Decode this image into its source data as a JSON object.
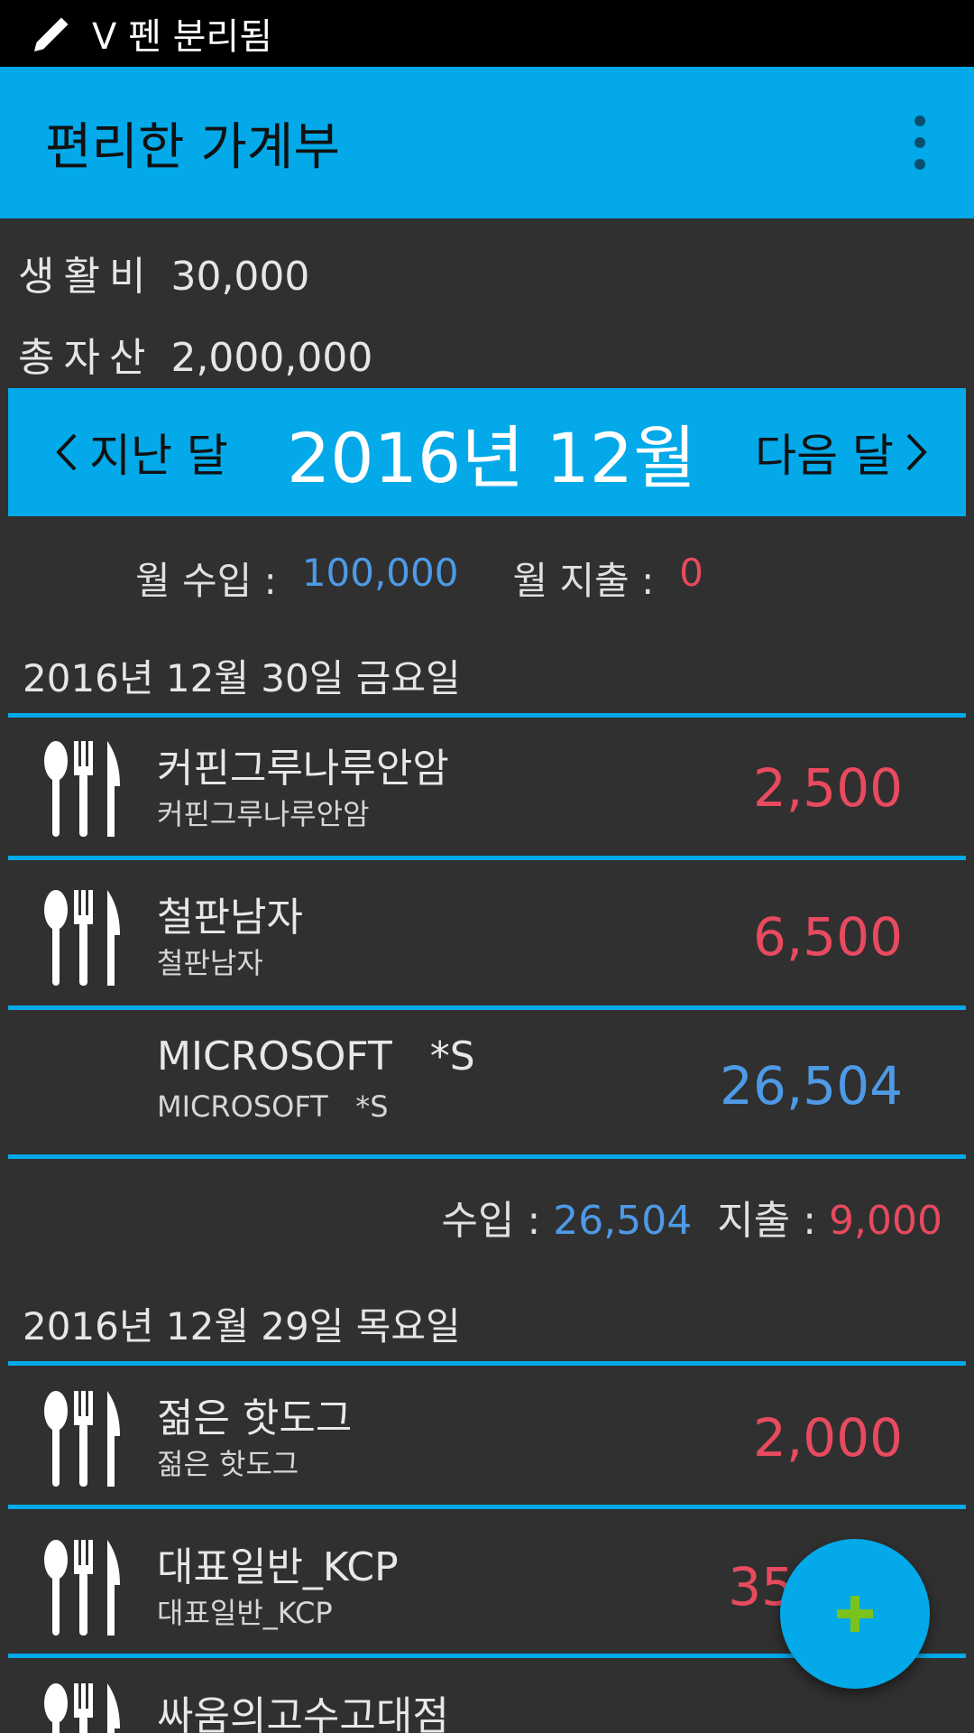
{
  "status_bar": {
    "text": "V 펜 분리됨",
    "icon": "pen-icon"
  },
  "app_bar": {
    "title": "편리한 가계부",
    "menu_icon": "more-vert-icon"
  },
  "summary": {
    "living_label": "생활비",
    "living_value": "30,000",
    "assets_label": "총자산",
    "assets_value": "2,000,000"
  },
  "month_nav": {
    "prev": "지난 달",
    "current": "2016년 12월",
    "next": "다음 달"
  },
  "monthly": {
    "income_label": "월 수입 :",
    "income_value": "100,000",
    "expense_label": "월 지출 :",
    "expense_value": "0"
  },
  "days": [
    {
      "date": "2016년 12월 30일 금요일",
      "entries": [
        {
          "name": "커핀그루나루안암",
          "sub": "커핀그루나루안암",
          "amount": "2,500",
          "type": "expense",
          "icon": "cutlery-icon"
        },
        {
          "name": "철판남자",
          "sub": "철판남자",
          "amount": "6,500",
          "type": "expense",
          "icon": "cutlery-icon"
        },
        {
          "name": "MICROSOFT   *S",
          "sub": "MICROSOFT   *S",
          "amount": "26,504",
          "type": "income",
          "icon": ""
        }
      ],
      "total": {
        "income_label": "수입 :",
        "income_value": "26,504",
        "expense_label": "지출 :",
        "expense_value": "9,000"
      }
    },
    {
      "date": "2016년 12월 29일 목요일",
      "entries": [
        {
          "name": "젊은 핫도그",
          "sub": "젊은 핫도그",
          "amount": "2,000",
          "type": "expense",
          "icon": "cutlery-icon"
        },
        {
          "name": "대표일반_KCP",
          "sub": "대표일반_KCP",
          "amount": "35",
          "type": "expense",
          "icon": "cutlery-icon"
        },
        {
          "name": "싸움의고수고대점",
          "sub": "",
          "amount": "",
          "type": "expense",
          "icon": "cutlery-icon"
        }
      ]
    }
  ],
  "fab": {
    "icon": "plus-icon"
  },
  "colors": {
    "accent": "#03a9e8",
    "income": "#4e9ae6",
    "expense": "#e84a5f",
    "background": "#303030"
  }
}
